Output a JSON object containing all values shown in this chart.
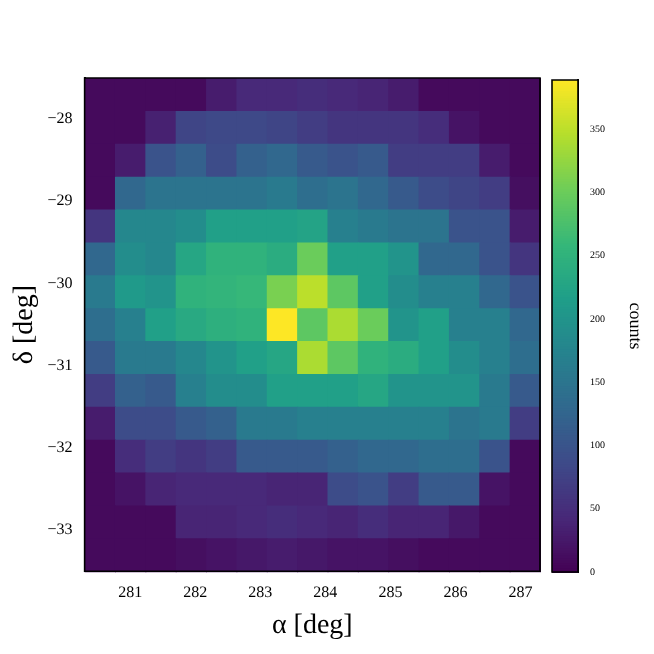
{
  "chart_data": {
    "type": "heatmap",
    "xlabel": "α [deg]",
    "ylabel": "δ [deg]",
    "clabel": "counts",
    "xlim": [
      280.3,
      287.3
    ],
    "ylim": [
      -33.5,
      -27.5
    ],
    "xticks": [
      281,
      282,
      283,
      284,
      285,
      286,
      287
    ],
    "yticks": [
      {
        "value": -28,
        "label": "−28"
      },
      {
        "value": -29,
        "label": "−29"
      },
      {
        "value": -30,
        "label": "−30"
      },
      {
        "value": -31,
        "label": "−31"
      },
      {
        "value": -32,
        "label": "−32"
      },
      {
        "value": -33,
        "label": "−33"
      }
    ],
    "clim": [
      0,
      389
    ],
    "cticks": [
      0,
      50,
      100,
      150,
      200,
      250,
      300,
      350
    ],
    "cells": [
      [
        10,
        10,
        10,
        10,
        30,
        45,
        45,
        50,
        45,
        40,
        30,
        10,
        10,
        10,
        10
      ],
      [
        10,
        10,
        35,
        80,
        85,
        85,
        80,
        70,
        60,
        60,
        60,
        50,
        20,
        10,
        10
      ],
      [
        10,
        30,
        100,
        120,
        90,
        120,
        130,
        110,
        100,
        110,
        70,
        70,
        70,
        30,
        10
      ],
      [
        10,
        130,
        150,
        150,
        150,
        150,
        160,
        140,
        150,
        130,
        110,
        90,
        80,
        70,
        15
      ],
      [
        60,
        180,
        180,
        190,
        220,
        220,
        220,
        225,
        170,
        160,
        150,
        150,
        100,
        100,
        30
      ],
      [
        130,
        190,
        180,
        230,
        250,
        250,
        240,
        300,
        220,
        220,
        200,
        130,
        130,
        100,
        60
      ],
      [
        160,
        210,
        200,
        250,
        255,
        260,
        310,
        350,
        290,
        220,
        190,
        170,
        170,
        130,
        100
      ],
      [
        140,
        170,
        220,
        235,
        245,
        250,
        389,
        290,
        340,
        300,
        200,
        220,
        170,
        170,
        130
      ],
      [
        110,
        160,
        160,
        180,
        200,
        220,
        230,
        340,
        290,
        250,
        240,
        220,
        190,
        170,
        140
      ],
      [
        70,
        120,
        110,
        170,
        190,
        190,
        220,
        220,
        220,
        230,
        200,
        200,
        200,
        160,
        110
      ],
      [
        30,
        90,
        90,
        110,
        120,
        160,
        160,
        170,
        170,
        170,
        170,
        170,
        150,
        160,
        70
      ],
      [
        10,
        50,
        70,
        60,
        70,
        110,
        110,
        110,
        120,
        130,
        130,
        140,
        140,
        100,
        10
      ],
      [
        10,
        20,
        40,
        45,
        45,
        45,
        40,
        40,
        90,
        100,
        70,
        110,
        110,
        20,
        10
      ],
      [
        10,
        10,
        10,
        40,
        40,
        45,
        50,
        45,
        40,
        50,
        40,
        40,
        25,
        10,
        10
      ],
      [
        10,
        10,
        10,
        15,
        20,
        25,
        30,
        25,
        20,
        20,
        15,
        10,
        10,
        10,
        10
      ]
    ]
  }
}
